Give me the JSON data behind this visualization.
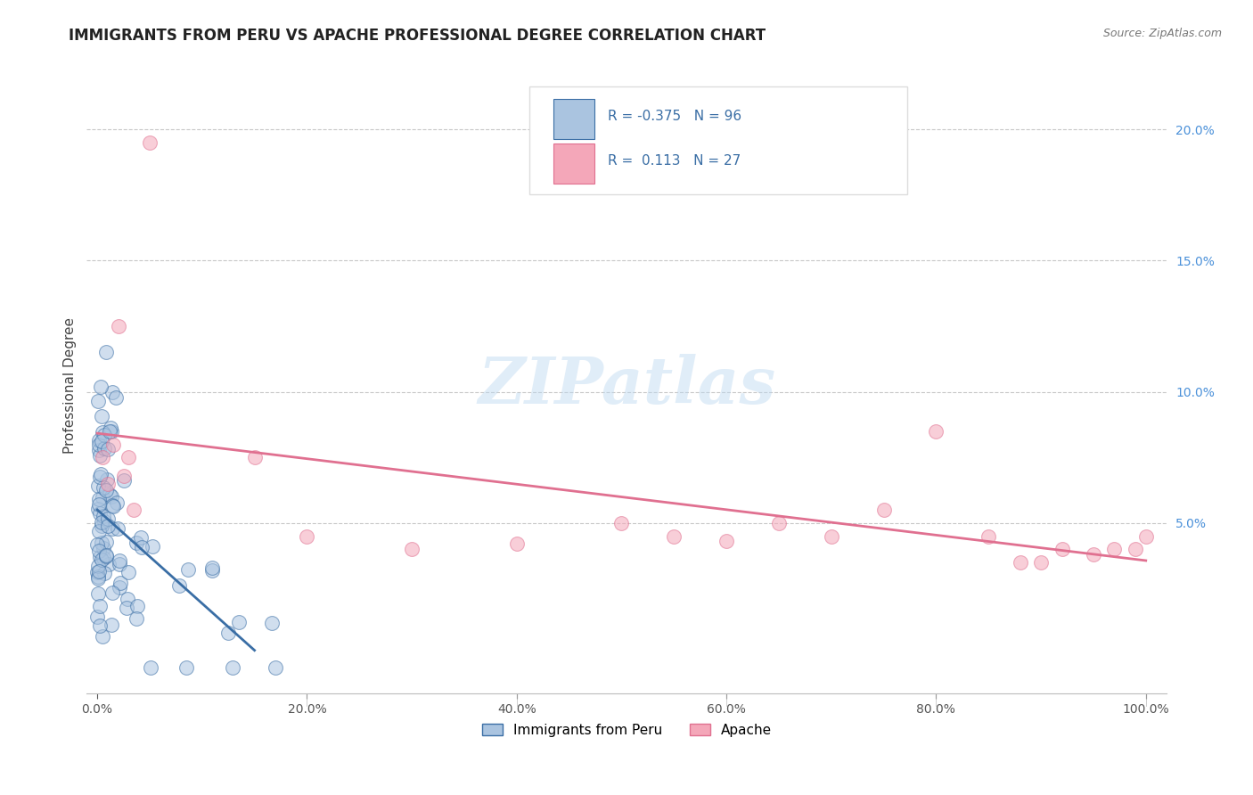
{
  "title": "IMMIGRANTS FROM PERU VS APACHE PROFESSIONAL DEGREE CORRELATION CHART",
  "source": "Source: ZipAtlas.com",
  "ylabel": "Professional Degree",
  "x_tick_labels": [
    "0.0%",
    "",
    "20.0%",
    "",
    "40.0%",
    "",
    "60.0%",
    "",
    "80.0%",
    "",
    "100.0%"
  ],
  "y_tick_labels": [
    "",
    "5.0%",
    "10.0%",
    "15.0%",
    "20.0%"
  ],
  "xlim": [
    -1,
    102
  ],
  "ylim": [
    -1.5,
    22
  ],
  "legend_label1": "Immigrants from Peru",
  "legend_label2": "Apache",
  "R1": -0.375,
  "N1": 96,
  "R2": 0.113,
  "N2": 27,
  "color_blue": "#aac4e0",
  "color_pink": "#f4a7b9",
  "color_blue_line": "#3a6ea5",
  "color_pink_line": "#e07090",
  "watermark": "ZIPatlas",
  "background": "#ffffff",
  "grid_color": "#c8c8c8",
  "seed": 99
}
